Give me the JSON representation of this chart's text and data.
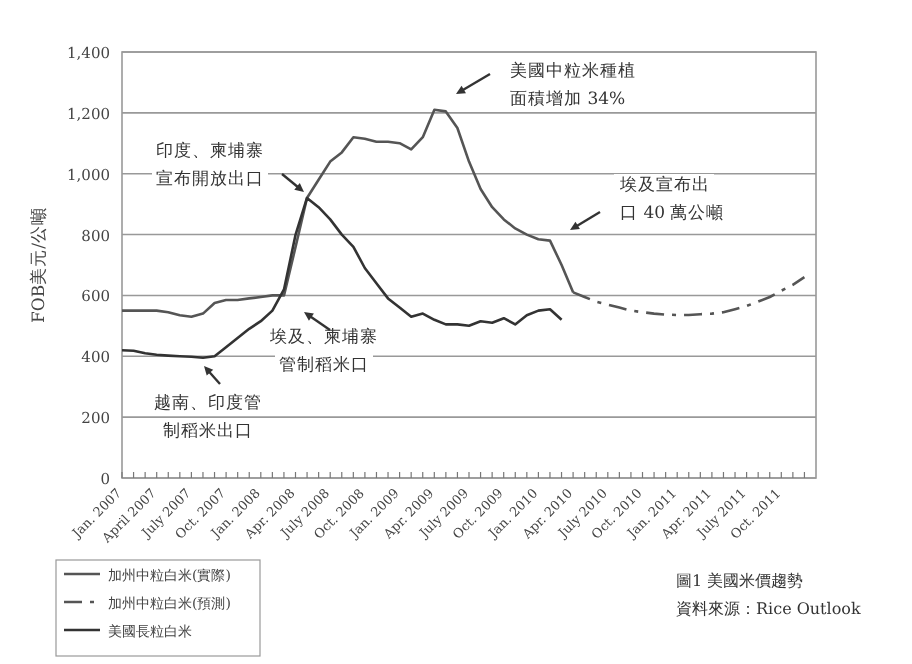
{
  "chart_data": {
    "type": "line",
    "ylabel": "FOB美元/公噸",
    "ylim": [
      0,
      1400
    ],
    "yticks": [
      {
        "value": 0,
        "label": "0"
      },
      {
        "value": 200,
        "label": "200"
      },
      {
        "value": 400,
        "label": "400"
      },
      {
        "value": 600,
        "label": "600"
      },
      {
        "value": 800,
        "label": "800"
      },
      {
        "value": 1000,
        "label": "1,000"
      },
      {
        "value": 1200,
        "label": "1,200"
      },
      {
        "value": 1400,
        "label": "1,400"
      }
    ],
    "xlim": [
      "2007-01",
      "2012-01"
    ],
    "xticks": [
      {
        "value": "2007-01",
        "label": "Jan. 2007"
      },
      {
        "value": "2007-02",
        "label": null
      },
      {
        "value": "2007-03",
        "label": null
      },
      {
        "value": "2007-04",
        "label": "April 2007"
      },
      {
        "value": "2007-05",
        "label": null
      },
      {
        "value": "2007-06",
        "label": null
      },
      {
        "value": "2007-07",
        "label": "July 2007"
      },
      {
        "value": "2007-08",
        "label": null
      },
      {
        "value": "2007-09",
        "label": null
      },
      {
        "value": "2007-10",
        "label": "Oct. 2007"
      },
      {
        "value": "2007-11",
        "label": null
      },
      {
        "value": "2007-12",
        "label": null
      },
      {
        "value": "2008-01",
        "label": "Jan. 2008"
      },
      {
        "value": "2008-02",
        "label": null
      },
      {
        "value": "2008-03",
        "label": null
      },
      {
        "value": "2008-04",
        "label": "Apr. 2008"
      },
      {
        "value": "2008-05",
        "label": null
      },
      {
        "value": "2008-06",
        "label": null
      },
      {
        "value": "2008-07",
        "label": "July 2008"
      },
      {
        "value": "2008-08",
        "label": null
      },
      {
        "value": "2008-09",
        "label": null
      },
      {
        "value": "2008-10",
        "label": "Oct. 2008"
      },
      {
        "value": "2008-11",
        "label": null
      },
      {
        "value": "2008-12",
        "label": null
      },
      {
        "value": "2009-01",
        "label": "Jan. 2009"
      },
      {
        "value": "2009-02",
        "label": null
      },
      {
        "value": "2009-03",
        "label": null
      },
      {
        "value": "2009-04",
        "label": "Apr. 2009"
      },
      {
        "value": "2009-05",
        "label": null
      },
      {
        "value": "2009-06",
        "label": null
      },
      {
        "value": "2009-07",
        "label": "July 2009"
      },
      {
        "value": "2009-08",
        "label": null
      },
      {
        "value": "2009-09",
        "label": null
      },
      {
        "value": "2009-10",
        "label": "Oct. 2009"
      },
      {
        "value": "2009-11",
        "label": null
      },
      {
        "value": "2009-12",
        "label": null
      },
      {
        "value": "2010-01",
        "label": "Jan. 2010"
      },
      {
        "value": "2010-02",
        "label": null
      },
      {
        "value": "2010-03",
        "label": null
      },
      {
        "value": "2010-04",
        "label": "Apr. 2010"
      },
      {
        "value": "2010-05",
        "label": null
      },
      {
        "value": "2010-06",
        "label": null
      },
      {
        "value": "2010-07",
        "label": "July 2010"
      },
      {
        "value": "2010-08",
        "label": null
      },
      {
        "value": "2010-09",
        "label": null
      },
      {
        "value": "2010-10",
        "label": "Oct. 2010"
      },
      {
        "value": "2010-11",
        "label": null
      },
      {
        "value": "2010-12",
        "label": null
      },
      {
        "value": "2011-01",
        "label": "Jan. 2011"
      },
      {
        "value": "2011-02",
        "label": null
      },
      {
        "value": "2011-03",
        "label": null
      },
      {
        "value": "2011-04",
        "label": "Apr. 2011"
      },
      {
        "value": "2011-05",
        "label": null
      },
      {
        "value": "2011-06",
        "label": null
      },
      {
        "value": "2011-07",
        "label": "July 2011"
      },
      {
        "value": "2011-08",
        "label": null
      },
      {
        "value": "2011-09",
        "label": null
      },
      {
        "value": "2011-10",
        "label": "Oct. 2011"
      },
      {
        "value": "2011-11",
        "label": null
      },
      {
        "value": "2011-12",
        "label": null
      }
    ],
    "grid": "y",
    "legend": "bottom left",
    "series": [
      {
        "name": "加州中粒白米(實際)",
        "color": "#555555",
        "line_style": "solid",
        "x": [
          "2007-01",
          "2007-02",
          "2007-03",
          "2007-04",
          "2007-05",
          "2007-06",
          "2007-07",
          "2007-08",
          "2007-09",
          "2007-10",
          "2007-11",
          "2007-12",
          "2008-01",
          "2008-02",
          "2008-03",
          "2008-04",
          "2008-05",
          "2008-06",
          "2008-07",
          "2008-08",
          "2008-09",
          "2008-10",
          "2008-11",
          "2008-12",
          "2009-01",
          "2009-02",
          "2009-03",
          "2009-04",
          "2009-05",
          "2009-06",
          "2009-07",
          "2009-08",
          "2009-09",
          "2009-10",
          "2009-11",
          "2009-12",
          "2010-01",
          "2010-02",
          "2010-03",
          "2010-04"
        ],
        "values": [
          550,
          550,
          550,
          550,
          545,
          535,
          530,
          540,
          575,
          585,
          585,
          590,
          595,
          600,
          600,
          760,
          920,
          980,
          1040,
          1070,
          1120,
          1115,
          1105,
          1105,
          1100,
          1080,
          1120,
          1210,
          1205,
          1150,
          1040,
          950,
          890,
          850,
          820,
          800,
          785,
          780,
          700,
          610
        ]
      },
      {
        "name": "加州中粒白米(預測)",
        "color": "#555555",
        "line_style": "dashed",
        "x": [
          "2010-04",
          "2010-05",
          "2010-06",
          "2010-07",
          "2010-08",
          "2010-09",
          "2010-10",
          "2010-11",
          "2010-12",
          "2011-01",
          "2011-02",
          "2011-03",
          "2011-04",
          "2011-05",
          "2011-06",
          "2011-07",
          "2011-08",
          "2011-09",
          "2011-10",
          "2011-11",
          "2011-12"
        ],
        "values": [
          610,
          595,
          580,
          570,
          560,
          550,
          545,
          540,
          537,
          536,
          536,
          538,
          540,
          545,
          555,
          565,
          580,
          595,
          615,
          635,
          660
        ]
      },
      {
        "name": "美國長粒白米",
        "color": "#333333",
        "line_style": "solid",
        "x": [
          "2007-01",
          "2007-02",
          "2007-03",
          "2007-04",
          "2007-05",
          "2007-06",
          "2007-07",
          "2007-08",
          "2007-09",
          "2007-10",
          "2007-11",
          "2007-12",
          "2008-01",
          "2008-02",
          "2008-03",
          "2008-04",
          "2008-05",
          "2008-06",
          "2008-07",
          "2008-08",
          "2008-09",
          "2008-10",
          "2008-11",
          "2008-12",
          "2009-01",
          "2009-02",
          "2009-03",
          "2009-04",
          "2009-05",
          "2009-06",
          "2009-07",
          "2009-08",
          "2009-09",
          "2009-10",
          "2009-11",
          "2009-12",
          "2010-01",
          "2010-02",
          "2010-03"
        ],
        "values": [
          420,
          418,
          410,
          405,
          402,
          400,
          398,
          395,
          400,
          430,
          460,
          490,
          515,
          550,
          620,
          800,
          920,
          890,
          850,
          800,
          760,
          690,
          640,
          590,
          560,
          530,
          540,
          520,
          505,
          505,
          500,
          515,
          510,
          525,
          505,
          535,
          550,
          555,
          520
        ]
      }
    ],
    "annotations": [
      "印度、柬埔寨宣布開放出口",
      "美國中粒米種植面積增加 34%",
      "埃及宣布出口 40 萬公噸",
      "埃及、柬埔寨管制稻米口",
      "越南、印度管制稻米出口",
      "圖1  美國米價趨勢",
      "資料來源：Rice Outlook"
    ]
  }
}
